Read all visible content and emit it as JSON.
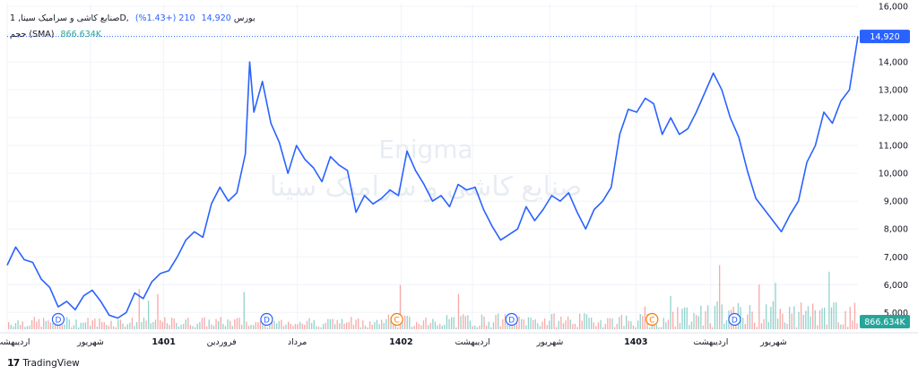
{
  "legend": {
    "symbol": "صنایع کاشی و سرامیک سینا, 1D, بورس",
    "price": "14,920",
    "change": "210 (+1.43%)",
    "volume_label": "حجم (SMA)",
    "volume_value": "866.634K"
  },
  "watermark": {
    "line1": "Enigma",
    "line2": "صنایع کاشی و سرامیک سینا"
  },
  "branding": {
    "logo": "17",
    "name": "TradingView"
  },
  "colors": {
    "line": "#2962ff",
    "vol_up": "#26a69a",
    "vol_down": "#ef5350",
    "badge_d": "#2962ff",
    "badge_c": "#f57c00",
    "grid": "#f0f3fa"
  },
  "chart_data": {
    "type": "line",
    "y_axis_ticks": [
      "5,000",
      "6,000",
      "7,000",
      "8,000",
      "9,000",
      "10,000",
      "11,000",
      "12,000",
      "13,000",
      "14,000",
      "15,000",
      "16,000"
    ],
    "ylim": [
      4300,
      16100
    ],
    "x_axis_labels": [
      {
        "label": "اردیبهشت",
        "t": 0.0
      },
      {
        "label": "شهریور",
        "t": 0.098
      },
      {
        "label": "1401",
        "t": 0.184
      },
      {
        "label": "فروردین",
        "t": 0.252
      },
      {
        "label": "مرداد",
        "t": 0.341
      },
      {
        "label": "1402",
        "t": 0.463
      },
      {
        "label": "اردیبهشت",
        "t": 0.547
      },
      {
        "label": "شهریور",
        "t": 0.638
      },
      {
        "label": "1403",
        "t": 0.739
      },
      {
        "label": "اردیبهشت",
        "t": 0.827
      },
      {
        "label": "شهریور",
        "t": 0.901
      }
    ],
    "series": [
      {
        "values": [
          [
            0.0,
            6700
          ],
          [
            0.01,
            7350
          ],
          [
            0.02,
            6900
          ],
          [
            0.03,
            6800
          ],
          [
            0.04,
            6200
          ],
          [
            0.05,
            5900
          ],
          [
            0.06,
            5200
          ],
          [
            0.07,
            5400
          ],
          [
            0.08,
            5100
          ],
          [
            0.09,
            5600
          ],
          [
            0.1,
            5800
          ],
          [
            0.11,
            5400
          ],
          [
            0.12,
            4900
          ],
          [
            0.13,
            4800
          ],
          [
            0.14,
            5000
          ],
          [
            0.15,
            5700
          ],
          [
            0.16,
            5500
          ],
          [
            0.17,
            6100
          ],
          [
            0.18,
            6400
          ],
          [
            0.19,
            6500
          ],
          [
            0.2,
            7000
          ],
          [
            0.21,
            7600
          ],
          [
            0.22,
            7900
          ],
          [
            0.23,
            7700
          ],
          [
            0.24,
            8900
          ],
          [
            0.25,
            9500
          ],
          [
            0.26,
            9000
          ],
          [
            0.27,
            9300
          ],
          [
            0.28,
            10700
          ],
          [
            0.285,
            14000
          ],
          [
            0.29,
            12200
          ],
          [
            0.3,
            13300
          ],
          [
            0.31,
            11800
          ],
          [
            0.32,
            11100
          ],
          [
            0.33,
            10000
          ],
          [
            0.34,
            11000
          ],
          [
            0.35,
            10500
          ],
          [
            0.36,
            10200
          ],
          [
            0.37,
            9700
          ],
          [
            0.38,
            10600
          ],
          [
            0.39,
            10300
          ],
          [
            0.4,
            10100
          ],
          [
            0.41,
            8600
          ],
          [
            0.42,
            9200
          ],
          [
            0.43,
            8900
          ],
          [
            0.44,
            9100
          ],
          [
            0.45,
            9400
          ],
          [
            0.46,
            9200
          ],
          [
            0.47,
            10800
          ],
          [
            0.48,
            10100
          ],
          [
            0.49,
            9600
          ],
          [
            0.5,
            9000
          ],
          [
            0.51,
            9200
          ],
          [
            0.52,
            8800
          ],
          [
            0.53,
            9600
          ],
          [
            0.54,
            9400
          ],
          [
            0.55,
            9500
          ],
          [
            0.56,
            8700
          ],
          [
            0.57,
            8100
          ],
          [
            0.58,
            7600
          ],
          [
            0.59,
            7800
          ],
          [
            0.6,
            8000
          ],
          [
            0.61,
            8800
          ],
          [
            0.62,
            8300
          ],
          [
            0.63,
            8700
          ],
          [
            0.64,
            9200
          ],
          [
            0.65,
            9000
          ],
          [
            0.66,
            9300
          ],
          [
            0.67,
            8600
          ],
          [
            0.68,
            8000
          ],
          [
            0.69,
            8700
          ],
          [
            0.7,
            9000
          ],
          [
            0.71,
            9500
          ],
          [
            0.72,
            11400
          ],
          [
            0.73,
            12300
          ],
          [
            0.74,
            12200
          ],
          [
            0.75,
            12700
          ],
          [
            0.76,
            12500
          ],
          [
            0.77,
            11400
          ],
          [
            0.78,
            12000
          ],
          [
            0.79,
            11400
          ],
          [
            0.8,
            11600
          ],
          [
            0.81,
            12200
          ],
          [
            0.82,
            12900
          ],
          [
            0.83,
            13600
          ],
          [
            0.84,
            13000
          ],
          [
            0.85,
            12000
          ],
          [
            0.86,
            11300
          ],
          [
            0.87,
            10100
          ],
          [
            0.88,
            9100
          ],
          [
            0.89,
            8700
          ],
          [
            0.9,
            8300
          ],
          [
            0.91,
            7900
          ],
          [
            0.92,
            8500
          ],
          [
            0.93,
            9000
          ],
          [
            0.94,
            10400
          ],
          [
            0.95,
            11000
          ],
          [
            0.96,
            12200
          ],
          [
            0.97,
            11800
          ],
          [
            0.98,
            12600
          ],
          [
            0.99,
            13000
          ],
          [
            1.0,
            14920
          ]
        ]
      }
    ],
    "last_price_label": "14,920",
    "last_volume_label": "866.634K",
    "badges": [
      {
        "t": 0.06,
        "letter": "D"
      },
      {
        "t": 0.305,
        "letter": "D"
      },
      {
        "t": 0.458,
        "letter": "C"
      },
      {
        "t": 0.593,
        "letter": "D"
      },
      {
        "t": 0.758,
        "letter": "C"
      },
      {
        "t": 0.855,
        "letter": "D"
      }
    ]
  }
}
